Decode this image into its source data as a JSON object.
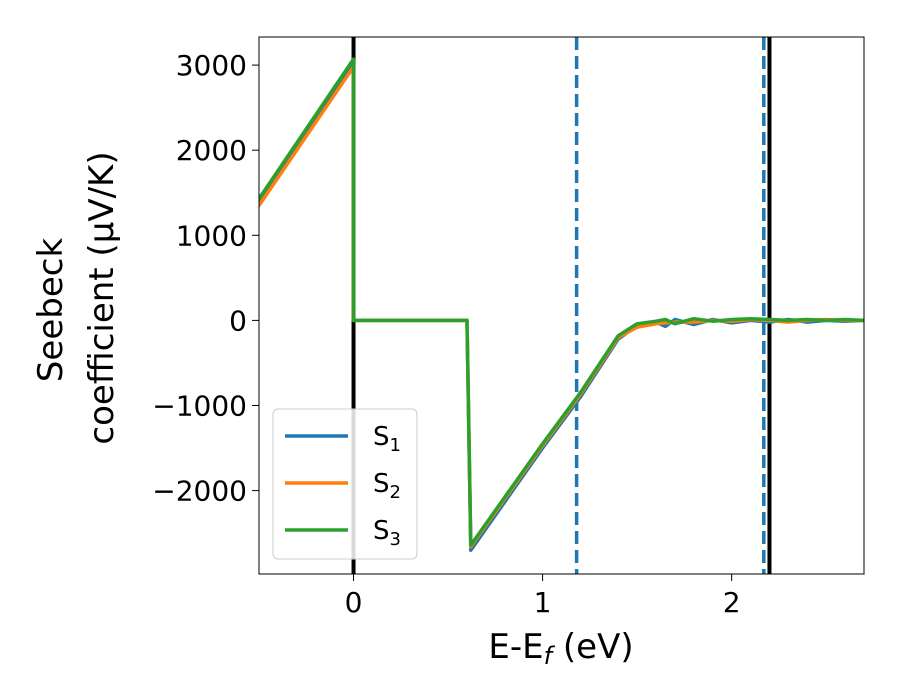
{
  "chart_data": {
    "type": "line",
    "xlabel": "E-E_f (eV)",
    "ylabel_line1": "Seebeck",
    "ylabel_line2": "coefficient  (μV/K)",
    "xlim": [
      -0.5,
      2.7
    ],
    "ylim": [
      -2980,
      3330
    ],
    "grid": false,
    "legend_position": "lower-left",
    "x_ticks": [
      0,
      1,
      2
    ],
    "x_tick_labels": [
      "0",
      "1",
      "2"
    ],
    "y_ticks": [
      3000,
      2000,
      1000,
      0,
      -1000,
      -2000
    ],
    "y_tick_labels": [
      "3000",
      "2000",
      "1000",
      "0",
      "−1000",
      "−2000"
    ],
    "vertical_lines": [
      {
        "x": 0.0,
        "style": "solid",
        "color": "#000000"
      },
      {
        "x": 1.18,
        "style": "dashed",
        "color": "#1f77b4"
      },
      {
        "x": 2.17,
        "style": "dashed",
        "color": "#1f77b4"
      },
      {
        "x": 2.2,
        "style": "solid",
        "color": "#000000"
      }
    ],
    "series": [
      {
        "name": "S",
        "subscript": "1",
        "color": "#1f77b4",
        "x": [
          -0.5,
          0.0,
          0.0,
          0.6,
          0.62,
          1.0,
          1.2,
          1.4,
          1.5,
          1.6,
          1.65,
          1.7,
          1.8,
          1.9,
          2.0,
          2.1,
          2.2,
          2.3,
          2.4,
          2.5,
          2.6,
          2.7
        ],
        "y": [
          1400,
          3050,
          0,
          0,
          -2700,
          -1500,
          -900,
          -220,
          -60,
          -20,
          -70,
          10,
          -50,
          10,
          -30,
          0,
          -20,
          10,
          -20,
          0,
          -10,
          0
        ]
      },
      {
        "name": "S",
        "subscript": "2",
        "color": "#ff7f0e",
        "x": [
          -0.5,
          0.0,
          0.0,
          0.6,
          0.62,
          1.0,
          1.2,
          1.4,
          1.5,
          1.6,
          1.65,
          1.7,
          1.8,
          1.9,
          2.0,
          2.1,
          2.2,
          2.3,
          2.4,
          2.5,
          2.6,
          2.7
        ],
        "y": [
          1350,
          2980,
          0,
          0,
          -2660,
          -1470,
          -870,
          -200,
          -80,
          -40,
          -30,
          -20,
          -20,
          0,
          -10,
          10,
          0,
          -20,
          0,
          10,
          0,
          0
        ]
      },
      {
        "name": "S",
        "subscript": "3",
        "color": "#2ca02c",
        "x": [
          -0.5,
          0.0,
          0.0,
          0.6,
          0.62,
          1.0,
          1.2,
          1.4,
          1.5,
          1.6,
          1.65,
          1.7,
          1.8,
          1.9,
          2.0,
          2.1,
          2.2,
          2.3,
          2.4,
          2.5,
          2.6,
          2.7
        ],
        "y": [
          1430,
          3070,
          0,
          0,
          -2640,
          -1450,
          -850,
          -180,
          -40,
          -10,
          10,
          -40,
          20,
          -10,
          10,
          20,
          10,
          0,
          10,
          0,
          10,
          0
        ]
      }
    ]
  }
}
